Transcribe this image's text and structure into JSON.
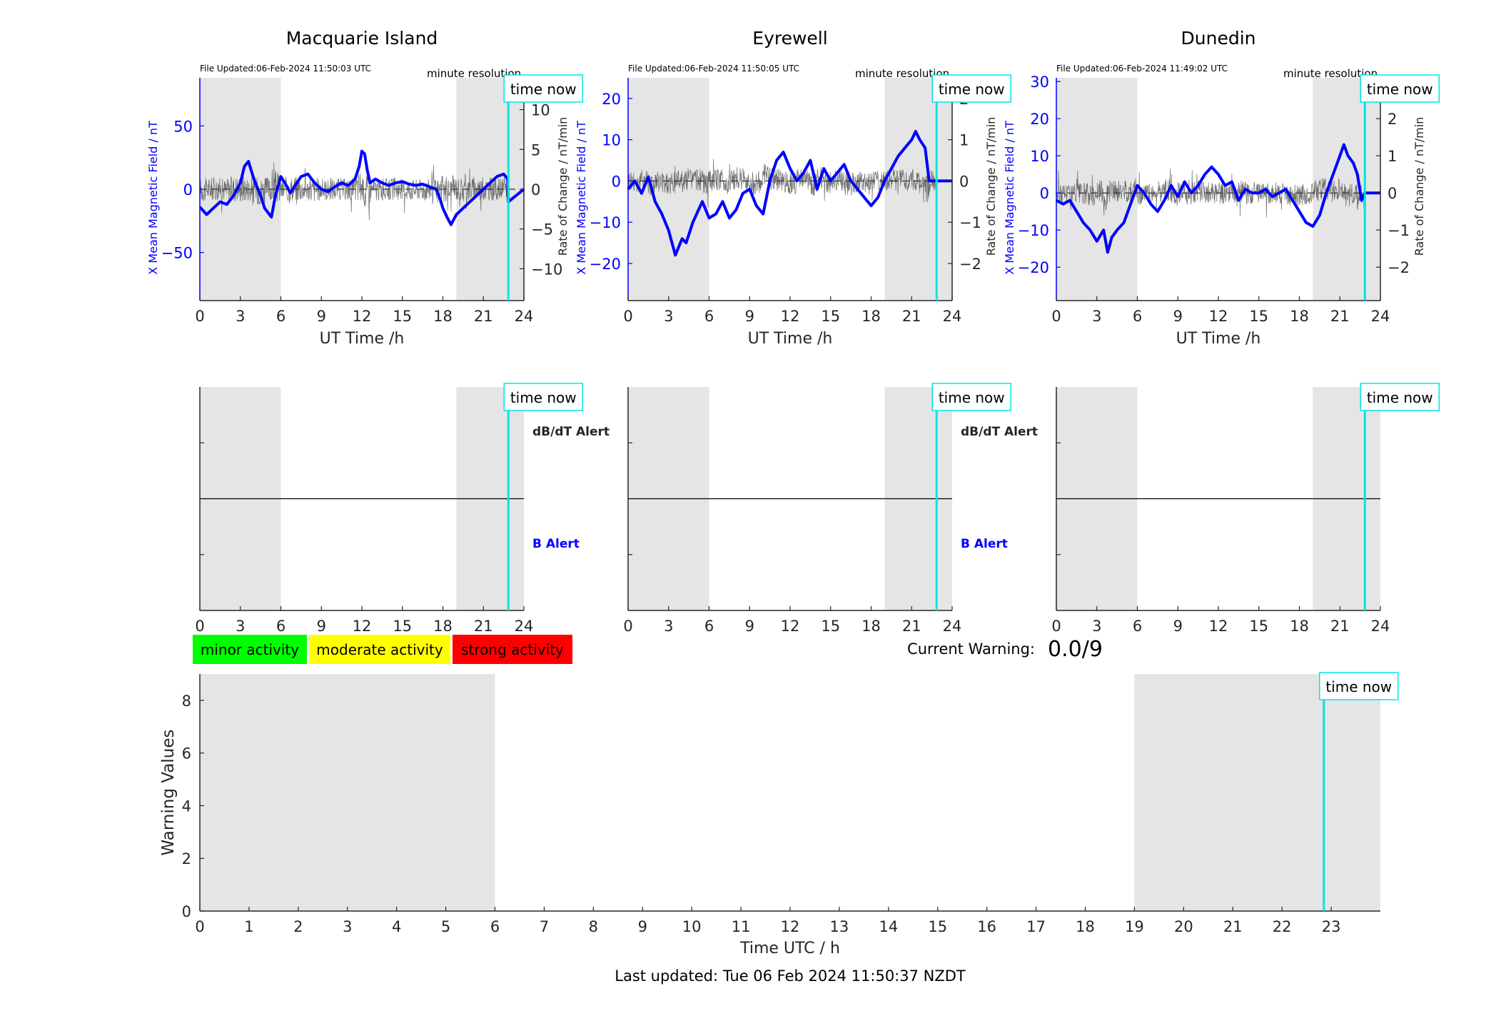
{
  "colors": {
    "field": "#0000ff",
    "rate": "#404040",
    "shade": "#e5e5e5",
    "time_now": "#00e5e5",
    "minor": "#00ff00",
    "moderate": "#ffff00",
    "strong": "#ff0000"
  },
  "time_now_label": "time now",
  "resolution_label": "minute resolution",
  "alert_labels": {
    "dbdt": "dB/dT Alert",
    "b": "B Alert"
  },
  "legend": [
    "minor activity",
    "moderate activity",
    "strong activity"
  ],
  "current_warning": {
    "label": "Current Warning:",
    "value": "0.0/9"
  },
  "footer": "Last updated: Tue 06 Feb 2024 11:50:37 NZDT",
  "chart_data": [
    {
      "type": "line",
      "title": "Macquarie Island",
      "file_updated": "File Updated:06-Feb-2024 11:50:03 UTC",
      "xlabel": "UT Time /h",
      "ylabel_left": "X Mean Magnetic Field / nT",
      "ylabel_right": "Rate of Change / nT/min",
      "xlim": [
        0,
        24
      ],
      "xticks": [
        0,
        3,
        6,
        9,
        12,
        15,
        18,
        21,
        24
      ],
      "ylim_left": [
        -88,
        88
      ],
      "yticks_left": [
        -50,
        0,
        50
      ],
      "ylim_right": [
        -14,
        14
      ],
      "yticks_right": [
        -10,
        -5,
        0,
        5,
        10
      ],
      "shaded": [
        [
          0,
          6
        ],
        [
          19,
          24
        ]
      ],
      "time_now": 22.85,
      "series": [
        {
          "axis": "left",
          "x": [
            0,
            0.5,
            1,
            1.5,
            2,
            2.5,
            3,
            3.3,
            3.6,
            4,
            4.5,
            4.8,
            5.3,
            5.6,
            6,
            6.3,
            6.7,
            7,
            7.5,
            8,
            8.5,
            9,
            9.5,
            10,
            10.5,
            11,
            11.5,
            11.8,
            12,
            12.2,
            12.4,
            12.6,
            13,
            13.5,
            14,
            14.5,
            15,
            15.5,
            16,
            16.5,
            17,
            17.5,
            17.8,
            18,
            18.3,
            18.6,
            19,
            19.5,
            20,
            20.5,
            21,
            21.5,
            22,
            22.5,
            22.8,
            22.85,
            24
          ],
          "y": [
            -14,
            -20,
            -15,
            -10,
            -12,
            -5,
            5,
            18,
            22,
            8,
            -5,
            -15,
            -22,
            -5,
            10,
            5,
            -3,
            2,
            10,
            12,
            5,
            0,
            -2,
            2,
            5,
            3,
            8,
            18,
            30,
            28,
            15,
            5,
            8,
            5,
            3,
            5,
            6,
            4,
            3,
            4,
            2,
            0,
            -8,
            -15,
            -22,
            -28,
            -20,
            -15,
            -10,
            -5,
            0,
            5,
            10,
            12,
            8,
            -10,
            0
          ]
        }
      ]
    },
    {
      "type": "line",
      "title": "Eyrewell",
      "file_updated": "File Updated:06-Feb-2024 11:50:05 UTC",
      "xlabel": "UT Time /h",
      "ylabel_left": "X Mean Magnetic Field / nT",
      "ylabel_right": "Rate of Change / nT/min",
      "xlim": [
        0,
        24
      ],
      "xticks": [
        0,
        3,
        6,
        9,
        12,
        15,
        18,
        21,
        24
      ],
      "ylim_left": [
        -29,
        25
      ],
      "yticks_left": [
        -20,
        -10,
        0,
        10,
        20
      ],
      "ylim_right": [
        -2.9,
        2.5
      ],
      "yticks_right": [
        -2,
        -1,
        0,
        1,
        2
      ],
      "shaded": [
        [
          0,
          6
        ],
        [
          19,
          24
        ]
      ],
      "time_now": 22.85,
      "series": [
        {
          "axis": "left",
          "x": [
            0,
            0.5,
            1,
            1.5,
            2,
            2.5,
            3,
            3.5,
            4,
            4.3,
            4.8,
            5.5,
            6,
            6.5,
            7,
            7.5,
            8,
            8.5,
            9,
            9.5,
            10,
            10.5,
            11,
            11.5,
            12,
            12.5,
            13,
            13.5,
            14,
            14.5,
            15,
            15.5,
            16,
            16.5,
            17,
            17.5,
            18,
            18.5,
            19,
            19.5,
            20,
            20.5,
            21,
            21.3,
            21.6,
            22,
            22.3,
            22.85,
            24
          ],
          "y": [
            -2,
            0,
            -3,
            1,
            -5,
            -8,
            -12,
            -18,
            -14,
            -15,
            -10,
            -5,
            -9,
            -8,
            -5,
            -9,
            -7,
            -3,
            -2,
            -6,
            -8,
            0,
            5,
            7,
            3,
            0,
            2,
            5,
            -2,
            3,
            0,
            2,
            4,
            0,
            -2,
            -4,
            -6,
            -4,
            0,
            3,
            6,
            8,
            10,
            12,
            10,
            8,
            0,
            0,
            0
          ]
        }
      ]
    },
    {
      "type": "line",
      "title": "Dunedin",
      "file_updated": "File Updated:06-Feb-2024 11:49:02 UTC",
      "xlabel": "UT Time /h",
      "ylabel_left": "X Mean Magnetic Field / nT",
      "ylabel_right": "Rate of Change / nT/min",
      "xlim": [
        0,
        24
      ],
      "xticks": [
        0,
        3,
        6,
        9,
        12,
        15,
        18,
        21,
        24
      ],
      "ylim_left": [
        -29,
        31
      ],
      "yticks_left": [
        -20,
        -10,
        0,
        10,
        20,
        30
      ],
      "ylim_right": [
        -2.9,
        3.1
      ],
      "yticks_right": [
        -2,
        -1,
        0,
        1,
        2,
        3
      ],
      "shaded": [
        [
          0,
          6
        ],
        [
          19,
          24
        ]
      ],
      "time_now": 22.85,
      "series": [
        {
          "axis": "left",
          "x": [
            0,
            0.5,
            1,
            1.5,
            2,
            2.5,
            3,
            3.5,
            3.8,
            4.1,
            4.5,
            5,
            5.5,
            6,
            6.5,
            7,
            7.5,
            8,
            8.5,
            9,
            9.5,
            10,
            10.5,
            11,
            11.5,
            12,
            12.5,
            13,
            13.5,
            14,
            14.5,
            15,
            15.5,
            16,
            16.5,
            17,
            17.5,
            18,
            18.5,
            19,
            19.5,
            20,
            20.5,
            21,
            21.3,
            21.6,
            22,
            22.3,
            22.6,
            22.85,
            24
          ],
          "y": [
            -2,
            -3,
            -2,
            -5,
            -8,
            -10,
            -13,
            -10,
            -16,
            -12,
            -10,
            -8,
            -3,
            2,
            0,
            -3,
            -5,
            -2,
            2,
            -1,
            3,
            0,
            2,
            5,
            7,
            5,
            2,
            3,
            -2,
            1,
            0,
            0,
            1,
            -1,
            0,
            1,
            -2,
            -5,
            -8,
            -9,
            -6,
            0,
            5,
            10,
            13,
            10,
            8,
            5,
            -2,
            0,
            0
          ]
        }
      ]
    },
    {
      "type": "line",
      "title": "",
      "xlabel": "",
      "xlim": [
        0,
        24
      ],
      "xticks": [
        0,
        3,
        6,
        9,
        12,
        15,
        18,
        21,
        24
      ],
      "shaded": [
        [
          0,
          6
        ],
        [
          19,
          24
        ]
      ],
      "time_now": 22.85,
      "series": [
        {
          "axis": "left",
          "x": [
            0,
            24
          ],
          "y": [
            0,
            0
          ]
        }
      ]
    },
    {
      "type": "line",
      "title": "",
      "xlabel": "",
      "xlim": [
        0,
        24
      ],
      "xticks": [
        0,
        3,
        6,
        9,
        12,
        15,
        18,
        21,
        24
      ],
      "shaded": [
        [
          0,
          6
        ],
        [
          19,
          24
        ]
      ],
      "time_now": 22.85,
      "series": [
        {
          "axis": "left",
          "x": [
            0,
            24
          ],
          "y": [
            0,
            0
          ]
        }
      ]
    },
    {
      "type": "line",
      "title": "",
      "xlabel": "",
      "xlim": [
        0,
        24
      ],
      "xticks": [
        0,
        3,
        6,
        9,
        12,
        15,
        18,
        21,
        24
      ],
      "shaded": [
        [
          0,
          6
        ],
        [
          19,
          24
        ]
      ],
      "time_now": 22.85,
      "series": [
        {
          "axis": "left",
          "x": [
            0,
            24
          ],
          "y": [
            0,
            0
          ]
        }
      ]
    },
    {
      "type": "line",
      "title": "",
      "xlabel": "Time UTC / h",
      "ylabel": "Warning Values",
      "xlim": [
        0,
        24
      ],
      "xticks": [
        0,
        1,
        2,
        3,
        4,
        5,
        6,
        7,
        8,
        9,
        10,
        11,
        12,
        13,
        14,
        15,
        16,
        17,
        18,
        19,
        20,
        21,
        22,
        23
      ],
      "ylim": [
        0,
        9
      ],
      "yticks": [
        0,
        2,
        4,
        6,
        8
      ],
      "shaded": [
        [
          0,
          6
        ],
        [
          19,
          24
        ]
      ],
      "time_now": 22.85,
      "series": [
        {
          "x": [],
          "y": []
        }
      ]
    }
  ]
}
